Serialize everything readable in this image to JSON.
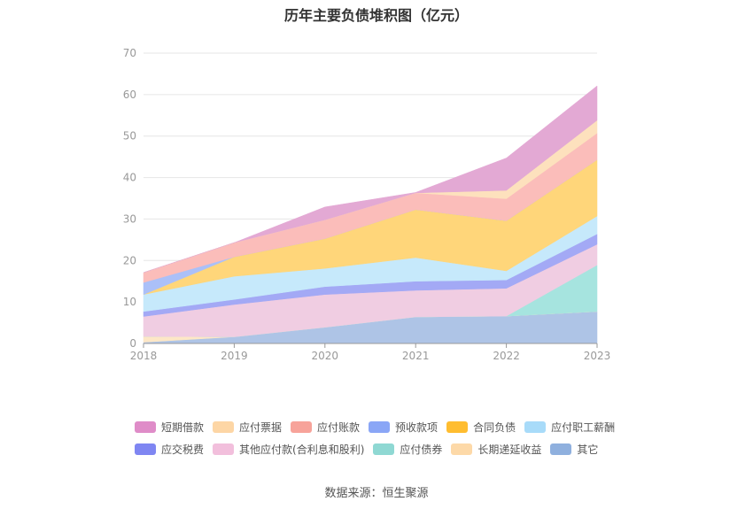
{
  "chart_data": {
    "type": "area",
    "stacked": true,
    "title": "历年主要负债堆积图（亿元）",
    "x": [
      "2018",
      "2019",
      "2020",
      "2021",
      "2022",
      "2023"
    ],
    "ylim": [
      0,
      70
    ],
    "yticks": [
      0,
      10,
      20,
      30,
      40,
      50,
      60,
      70
    ],
    "grid": true,
    "legend_position": "bottom",
    "series": [
      {
        "name": "其它",
        "color": "#aec4e6",
        "legend_color": "#8fb0de",
        "values": [
          0.3,
          1.6,
          3.9,
          6.4,
          6.6,
          7.7
        ]
      },
      {
        "name": "长期递延收益",
        "color": "#fde7c6",
        "legend_color": "#fdd9a8",
        "values": [
          1.4,
          0,
          0,
          0,
          0,
          0
        ]
      },
      {
        "name": "应付债券",
        "color": "#a6e4df",
        "legend_color": "#8fd8d3",
        "values": [
          0,
          0,
          0,
          0,
          0,
          11.2
        ]
      },
      {
        "name": "其他应付款(合利息和股利)",
        "color": "#f0cde2",
        "legend_color": "#f2bfdc",
        "values": [
          4.8,
          7.8,
          7.9,
          6.4,
          6.7,
          5.0
        ]
      },
      {
        "name": "应交税费",
        "color": "#a3a9f5",
        "legend_color": "#7f86f2",
        "values": [
          1.2,
          1.2,
          1.9,
          2.2,
          2.0,
          2.5
        ]
      },
      {
        "name": "应付职工薪酬",
        "color": "#c6e9fb",
        "legend_color": "#a8dbf9",
        "values": [
          4.1,
          5.6,
          4.4,
          5.7,
          2.2,
          4.3
        ]
      },
      {
        "name": "合同负债",
        "color": "#ffd67a",
        "legend_color": "#ffbd30",
        "values": [
          0,
          4.7,
          7.2,
          11.6,
          12.1,
          13.6
        ]
      },
      {
        "name": "预收款项",
        "color": "#abc0f8",
        "legend_color": "#8aa6f6",
        "values": [
          2.9,
          0,
          0,
          0,
          0,
          0
        ]
      },
      {
        "name": "应付账款",
        "color": "#fbbdba",
        "legend_color": "#f7a39a",
        "values": [
          2.4,
          3.4,
          4.5,
          4.0,
          5.3,
          6.4
        ]
      },
      {
        "name": "应付票据",
        "color": "#fde1bd",
        "legend_color": "#fdd6a5",
        "values": [
          0,
          0,
          0,
          0,
          2.0,
          3.1
        ]
      },
      {
        "name": "短期借款",
        "color": "#e3a9d4",
        "legend_color": "#df8cc8",
        "values": [
          0,
          0,
          3.1,
          0.1,
          7.8,
          8.3
        ]
      }
    ],
    "legend_rows": [
      [
        "短期借款",
        "应付票据",
        "应付账款",
        "预收款项",
        "合同负债",
        "应付职工薪酬"
      ],
      [
        "应交税费",
        "其他应付款(合利息和股利)",
        "应付债券",
        "长期递延收益",
        "其它"
      ]
    ]
  },
  "footer": {
    "source": "数据来源：恒生聚源"
  }
}
